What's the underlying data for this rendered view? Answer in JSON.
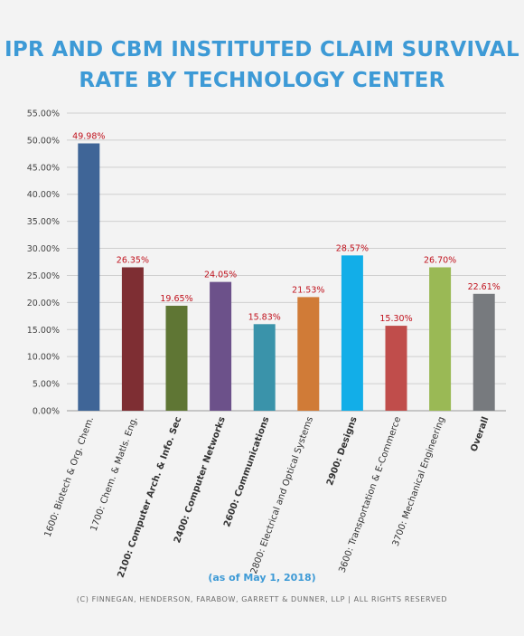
{
  "title": {
    "line1": "IPR AND CBM INSTITUTED CLAIM SURVIVAL",
    "line2": "RATE BY TECHNOLOGY CENTER"
  },
  "subtitle": "(as of May 1, 2018)",
  "copyright": "(C) FINNEGAN, HENDERSON, FARABOW, GARRETT & DUNNER, LLP | ALL RIGHTS RESERVED",
  "colors": {
    "title": "#3d9ad6",
    "data_label": "#c0121d",
    "grid": "#cfcfcf",
    "background": "#f3f3f3"
  },
  "chart_data": {
    "type": "bar",
    "title": "IPR AND CBM INSTITUTED CLAIM SURVIVAL RATE BY TECHNOLOGY CENTER",
    "xlabel": "",
    "ylabel": "",
    "ylim": [
      0,
      55
    ],
    "y_ticks": [
      "0.00%",
      "5.00%",
      "10.00%",
      "15.00%",
      "20.00%",
      "25.00%",
      "30.00%",
      "35.00%",
      "40.00%",
      "45.00%",
      "50.00%",
      "55.00%"
    ],
    "y_tick_values": [
      0,
      5,
      10,
      15,
      20,
      25,
      30,
      35,
      40,
      45,
      50,
      55
    ],
    "grid": true,
    "categories": [
      "1600: Biotech & Org. Chem.",
      "1700: Chem. & Matls. Eng.",
      "2100: Computer Arch. & Info. Sec",
      "2400: Computer Networks",
      "2600: Communications",
      "2800: Electrical and Optical Systems",
      "2900: Designs",
      "3600: Transportation & E-Commerce",
      "3700: Mechanical Engineering",
      "Overall"
    ],
    "category_bold": [
      false,
      false,
      true,
      true,
      true,
      false,
      true,
      false,
      false,
      true
    ],
    "values": [
      49.98,
      26.35,
      19.65,
      24.05,
      15.83,
      21.53,
      28.57,
      15.3,
      26.7,
      22.61
    ],
    "plotted_values": [
      49.4,
      26.5,
      19.4,
      23.8,
      16.0,
      21.0,
      28.7,
      15.7,
      26.5,
      21.6
    ],
    "data_labels": [
      "49.98%",
      "26.35%",
      "19.65%",
      "24.05%",
      "15.83%",
      "21.53%",
      "28.57%",
      "15.30%",
      "26.70%",
      "22.61%"
    ],
    "bar_colors": [
      "#3f6597",
      "#7e2e33",
      "#5f7634",
      "#6c518a",
      "#3a93aa",
      "#d07b37",
      "#12aee8",
      "#c04d4b",
      "#9ab955",
      "#777a7e"
    ]
  }
}
